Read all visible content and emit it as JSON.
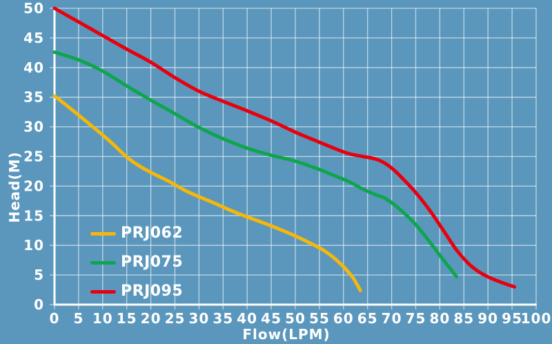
{
  "colors": {
    "background": "#5B97BC",
    "grid_line": "rgba(255,255,255,0.62)",
    "axis_line": "#FFFFFF",
    "text": "#FFFFFF"
  },
  "chart_data": {
    "type": "line",
    "title": "",
    "xlabel": "Flow(LPM)",
    "ylabel": "Head(M)",
    "xlim": [
      0,
      100
    ],
    "ylim": [
      0,
      50
    ],
    "x_ticks": [
      0,
      5,
      10,
      15,
      20,
      25,
      30,
      35,
      40,
      45,
      50,
      55,
      60,
      65,
      70,
      75,
      80,
      85,
      90,
      95,
      100
    ],
    "y_ticks": [
      0,
      5,
      10,
      15,
      20,
      25,
      30,
      35,
      40,
      45,
      50
    ],
    "grid": true,
    "legend_position": "inside bottom-left",
    "series": [
      {
        "name": "PRJ062",
        "color": "#F5B80A",
        "points": [
          [
            0,
            35.2
          ],
          [
            3,
            33.3
          ],
          [
            6,
            31.3
          ],
          [
            9,
            29.3
          ],
          [
            12,
            27.2
          ],
          [
            15,
            24.9
          ],
          [
            18,
            23.2
          ],
          [
            21,
            21.9
          ],
          [
            24,
            20.7
          ],
          [
            27,
            19.3
          ],
          [
            30,
            18.2
          ],
          [
            33,
            17.2
          ],
          [
            36,
            16.1
          ],
          [
            40,
            14.8
          ],
          [
            44,
            13.6
          ],
          [
            48,
            12.3
          ],
          [
            51,
            11.2
          ],
          [
            54,
            10.0
          ],
          [
            56,
            9.1
          ],
          [
            58,
            7.9
          ],
          [
            60,
            6.4
          ],
          [
            62,
            4.5
          ],
          [
            63.5,
            2.4
          ]
        ]
      },
      {
        "name": "PRJ075",
        "color": "#0FA54D",
        "points": [
          [
            0,
            42.6
          ],
          [
            5,
            41.3
          ],
          [
            10,
            39.4
          ],
          [
            15,
            36.9
          ],
          [
            20,
            34.5
          ],
          [
            25,
            32.2
          ],
          [
            30,
            29.9
          ],
          [
            35,
            28.0
          ],
          [
            40,
            26.4
          ],
          [
            45,
            25.2
          ],
          [
            50,
            24.2
          ],
          [
            55,
            22.8
          ],
          [
            58,
            21.8
          ],
          [
            61,
            20.8
          ],
          [
            64,
            19.5
          ],
          [
            66.5,
            18.6
          ],
          [
            68.5,
            18.0
          ],
          [
            70.5,
            16.9
          ],
          [
            72.5,
            15.5
          ],
          [
            75,
            13.5
          ],
          [
            78,
            10.5
          ],
          [
            80.5,
            7.8
          ],
          [
            83.5,
            4.7
          ]
        ]
      },
      {
        "name": "PRJ095",
        "color": "#E8000F",
        "points": [
          [
            0,
            50.0
          ],
          [
            5,
            47.7
          ],
          [
            10,
            45.4
          ],
          [
            15,
            43.1
          ],
          [
            20,
            40.9
          ],
          [
            25,
            38.3
          ],
          [
            30,
            36.0
          ],
          [
            35,
            34.3
          ],
          [
            40,
            32.7
          ],
          [
            45,
            31.0
          ],
          [
            50,
            29.1
          ],
          [
            55,
            27.4
          ],
          [
            58,
            26.4
          ],
          [
            61,
            25.5
          ],
          [
            64,
            25.0
          ],
          [
            66.5,
            24.6
          ],
          [
            68.5,
            23.9
          ],
          [
            70.5,
            22.7
          ],
          [
            72.5,
            21.1
          ],
          [
            75,
            18.9
          ],
          [
            78,
            15.8
          ],
          [
            81,
            12.2
          ],
          [
            83.5,
            9.2
          ],
          [
            86,
            6.9
          ],
          [
            88,
            5.6
          ],
          [
            90,
            4.7
          ],
          [
            92,
            4.0
          ],
          [
            94,
            3.4
          ],
          [
            95.5,
            3.0
          ]
        ]
      }
    ]
  }
}
